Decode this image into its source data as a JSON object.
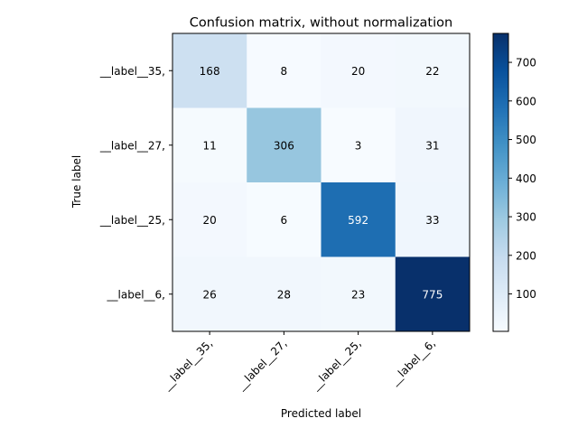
{
  "chart_data": {
    "type": "heatmap",
    "title": "Confusion matrix, without normalization",
    "xlabel": "Predicted label",
    "ylabel": "True label",
    "x_tick_labels": [
      "__label__35,",
      "__label__27,",
      "__label__25,",
      "__label__6,"
    ],
    "y_tick_labels": [
      "__label__35,",
      "__label__27,",
      "__label__25,",
      "__label__6,"
    ],
    "matrix": [
      [
        168,
        8,
        20,
        22
      ],
      [
        11,
        306,
        3,
        31
      ],
      [
        20,
        6,
        592,
        33
      ],
      [
        26,
        28,
        23,
        775
      ]
    ],
    "colormap": "Blues",
    "colorbar": {
      "range": [
        3,
        775
      ],
      "ticks": [
        100,
        200,
        300,
        400,
        500,
        600,
        700
      ]
    },
    "text_color_threshold": 387.5,
    "text_color_light": "#ffffff",
    "text_color_dark": "#000000"
  }
}
